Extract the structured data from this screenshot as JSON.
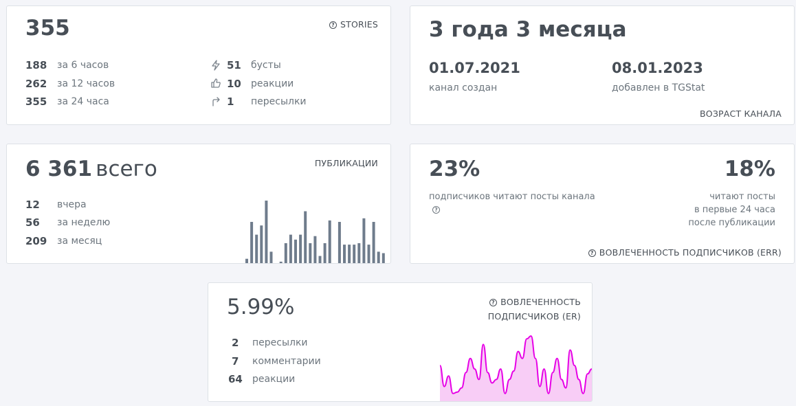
{
  "stories": {
    "title": "STORIES",
    "value": "355",
    "rows": [
      {
        "n": "188",
        "label": "за 6 часов"
      },
      {
        "n": "262",
        "label": "за 12 часов"
      },
      {
        "n": "355",
        "label": "за 24 часа"
      }
    ],
    "stats": [
      {
        "icon": "lightning-icon",
        "n": "51",
        "label": "бусты"
      },
      {
        "icon": "thumbs-up-icon",
        "n": "10",
        "label": "реакции"
      },
      {
        "icon": "forward-arrow-icon",
        "n": "1",
        "label": "пересылки"
      }
    ]
  },
  "age": {
    "title": "ВОЗРАСТ КАНАЛА",
    "value": "3 года 3 месяца",
    "created_date": "01.07.2021",
    "created_label": "канал создан",
    "added_date": "08.01.2023",
    "added_label": "добавлен в TGStat"
  },
  "posts": {
    "title": "ПУБЛИКАЦИИ",
    "total": "6 361",
    "total_suffix": "всего",
    "rows": [
      {
        "n": "12",
        "label": "вчера"
      },
      {
        "n": "56",
        "label": "за неделю"
      },
      {
        "n": "209",
        "label": "за месяц"
      }
    ],
    "bars": [
      8,
      60,
      42,
      55,
      90,
      18,
      0,
      4,
      30,
      42,
      35,
      42,
      75,
      30,
      40,
      12,
      30,
      62,
      0,
      60,
      28,
      28,
      28,
      30,
      65,
      28,
      60,
      18,
      16
    ],
    "bar_color": "#6f7c8c"
  },
  "err": {
    "title": "ВОВЛЕЧЕННОСТЬ ПОДПИСЧИКОВ (ERR)",
    "left_value": "23%",
    "left_label": "подписчиков читают посты канала",
    "right_value": "18%",
    "right_label_1": "читают посты",
    "right_label_2": "в первые 24 часа",
    "right_label_3": "после публикации"
  },
  "er": {
    "title_1": "ВОВЛЕЧЕННОСТЬ",
    "title_2": "ПОДПИСЧИКОВ (ER)",
    "value": "5.99%",
    "rows": [
      {
        "n": "2",
        "label": "пересылки"
      },
      {
        "n": "7",
        "label": "комментарии"
      },
      {
        "n": "64",
        "label": "реакции"
      }
    ],
    "series": [
      50,
      20,
      35,
      10,
      12,
      18,
      40,
      60,
      45,
      30,
      80,
      40,
      25,
      30,
      45,
      10,
      30,
      42,
      70,
      60,
      88,
      92,
      60,
      20,
      45,
      10,
      40,
      60,
      30,
      18,
      72,
      50,
      30,
      10,
      38,
      45
    ],
    "line_color": "#e600e6",
    "fill_color": "#f7c4f4"
  }
}
